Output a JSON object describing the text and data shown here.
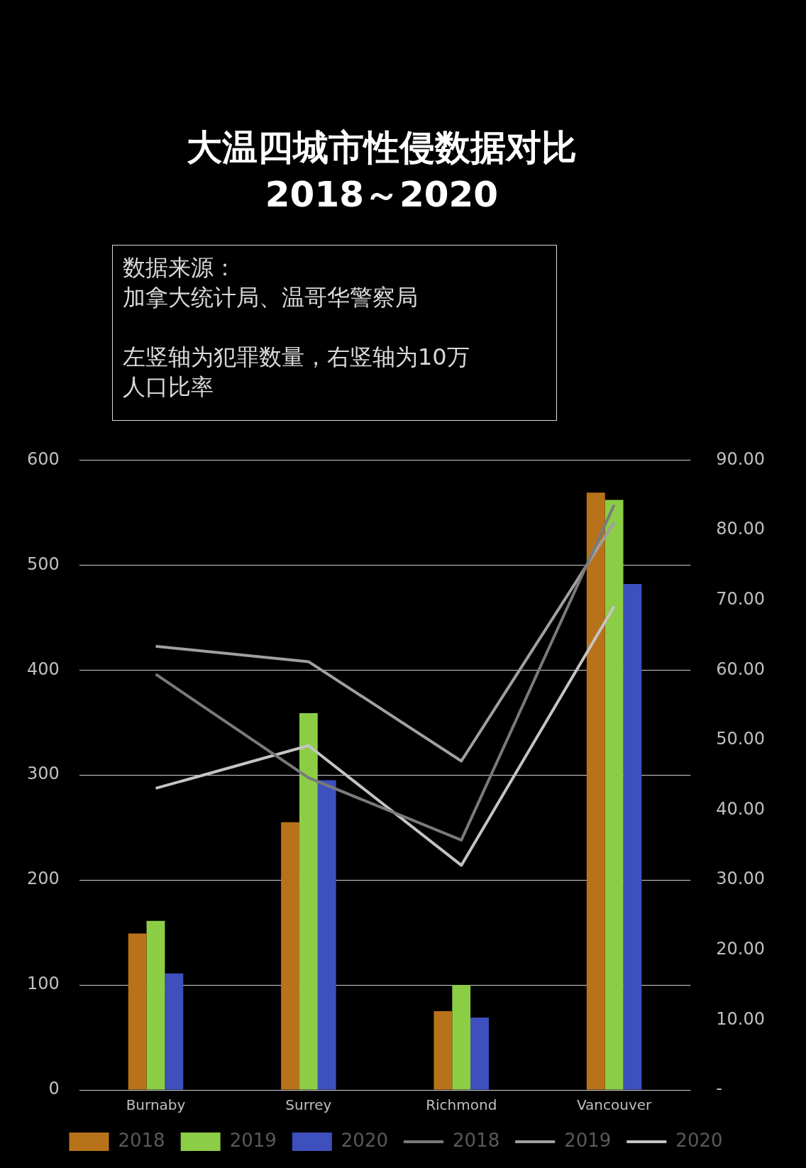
{
  "chart_data": {
    "type": "bar",
    "title": "大温四城市性侵数据对比",
    "subtitle": "2018～2020",
    "annotations": [
      "数据来源：",
      "加拿大统计局、温哥华警察局",
      "左竖轴为犯罪数量，右竖轴为10万人口比率"
    ],
    "categories": [
      "Burnaby",
      "Surrey",
      "Richmond",
      "Vancouver"
    ],
    "series": [
      {
        "name": "2018",
        "color": "#b8731a",
        "values": [
          149,
          255,
          75,
          569
        ]
      },
      {
        "name": "2019",
        "color": "#8ccd46",
        "values": [
          161,
          359,
          100,
          562
        ]
      },
      {
        "name": "2020",
        "color": "#3d50be",
        "values": [
          111,
          295,
          69,
          482
        ]
      },
      {
        "name": "2018",
        "type": "line",
        "axis": "y2",
        "color": "#7a7a7a",
        "values": [
          59.4,
          44.6,
          35.7,
          83.6
        ]
      },
      {
        "name": "2019",
        "type": "line",
        "axis": "y2",
        "color": "#a0a0a0",
        "values": [
          63.4,
          61.2,
          47.0,
          81.1
        ]
      },
      {
        "name": "2020",
        "type": "line",
        "axis": "y2",
        "color": "#c4c4c4",
        "values": [
          43.1,
          49.2,
          32.1,
          69.1
        ]
      }
    ],
    "ylim": [
      0,
      600
    ],
    "yticks": [
      0,
      100,
      200,
      300,
      400,
      500,
      600
    ],
    "y2lim": [
      0,
      90
    ],
    "y2ticks": [
      {
        "value": 0,
        "label": "-"
      },
      {
        "value": 10,
        "label": "10.00"
      },
      {
        "value": 20,
        "label": "20.00"
      },
      {
        "value": 30,
        "label": "30.00"
      },
      {
        "value": 40,
        "label": "40.00"
      },
      {
        "value": 50,
        "label": "50.00"
      },
      {
        "value": 60,
        "label": "60.00"
      },
      {
        "value": 70,
        "label": "70.00"
      },
      {
        "value": 80,
        "label": "80.00"
      },
      {
        "value": 90,
        "label": "90.00"
      }
    ],
    "grid": "y",
    "legend": "bottom",
    "marker": "none",
    "line_style": "solid"
  }
}
